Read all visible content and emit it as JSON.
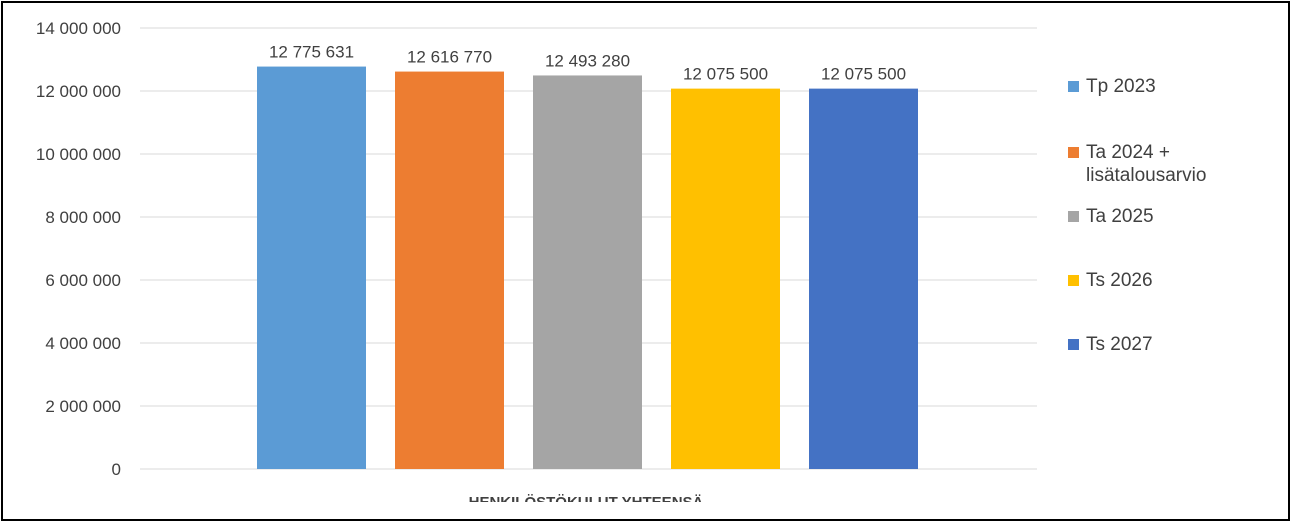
{
  "chart_data": {
    "type": "bar",
    "title": "",
    "xlabel": "",
    "ylabel": "",
    "categories": [
      "HENKILÖSTÖKULUT YHTEENSÄ"
    ],
    "ylim": [
      0,
      14000000
    ],
    "y_ticks": [
      "0",
      "2 000 000",
      "4 000 000",
      "6 000 000",
      "8 000 000",
      "10 000 000",
      "12 000 000",
      "14 000 000"
    ],
    "y_tick_values": [
      0,
      2000000,
      4000000,
      6000000,
      8000000,
      10000000,
      12000000,
      14000000
    ],
    "grid": true,
    "legend_position": "right",
    "series": [
      {
        "name": "Tp 2023",
        "values": [
          12775631
        ],
        "label": "12 775 631",
        "color": "#5B9BD5"
      },
      {
        "name": "Ta 2024 + lisätalousarvio",
        "values": [
          12616770
        ],
        "label": "12 616 770",
        "color": "#ED7D31"
      },
      {
        "name": "Ta 2025",
        "values": [
          12493280
        ],
        "label": "12 493 280",
        "color": "#A5A5A5"
      },
      {
        "name": "Ts 2026",
        "values": [
          12075500
        ],
        "label": "12 075 500",
        "color": "#FFC000"
      },
      {
        "name": "Ts 2027",
        "values": [
          12075500
        ],
        "label": "12 075 500",
        "color": "#4472C4"
      }
    ]
  }
}
